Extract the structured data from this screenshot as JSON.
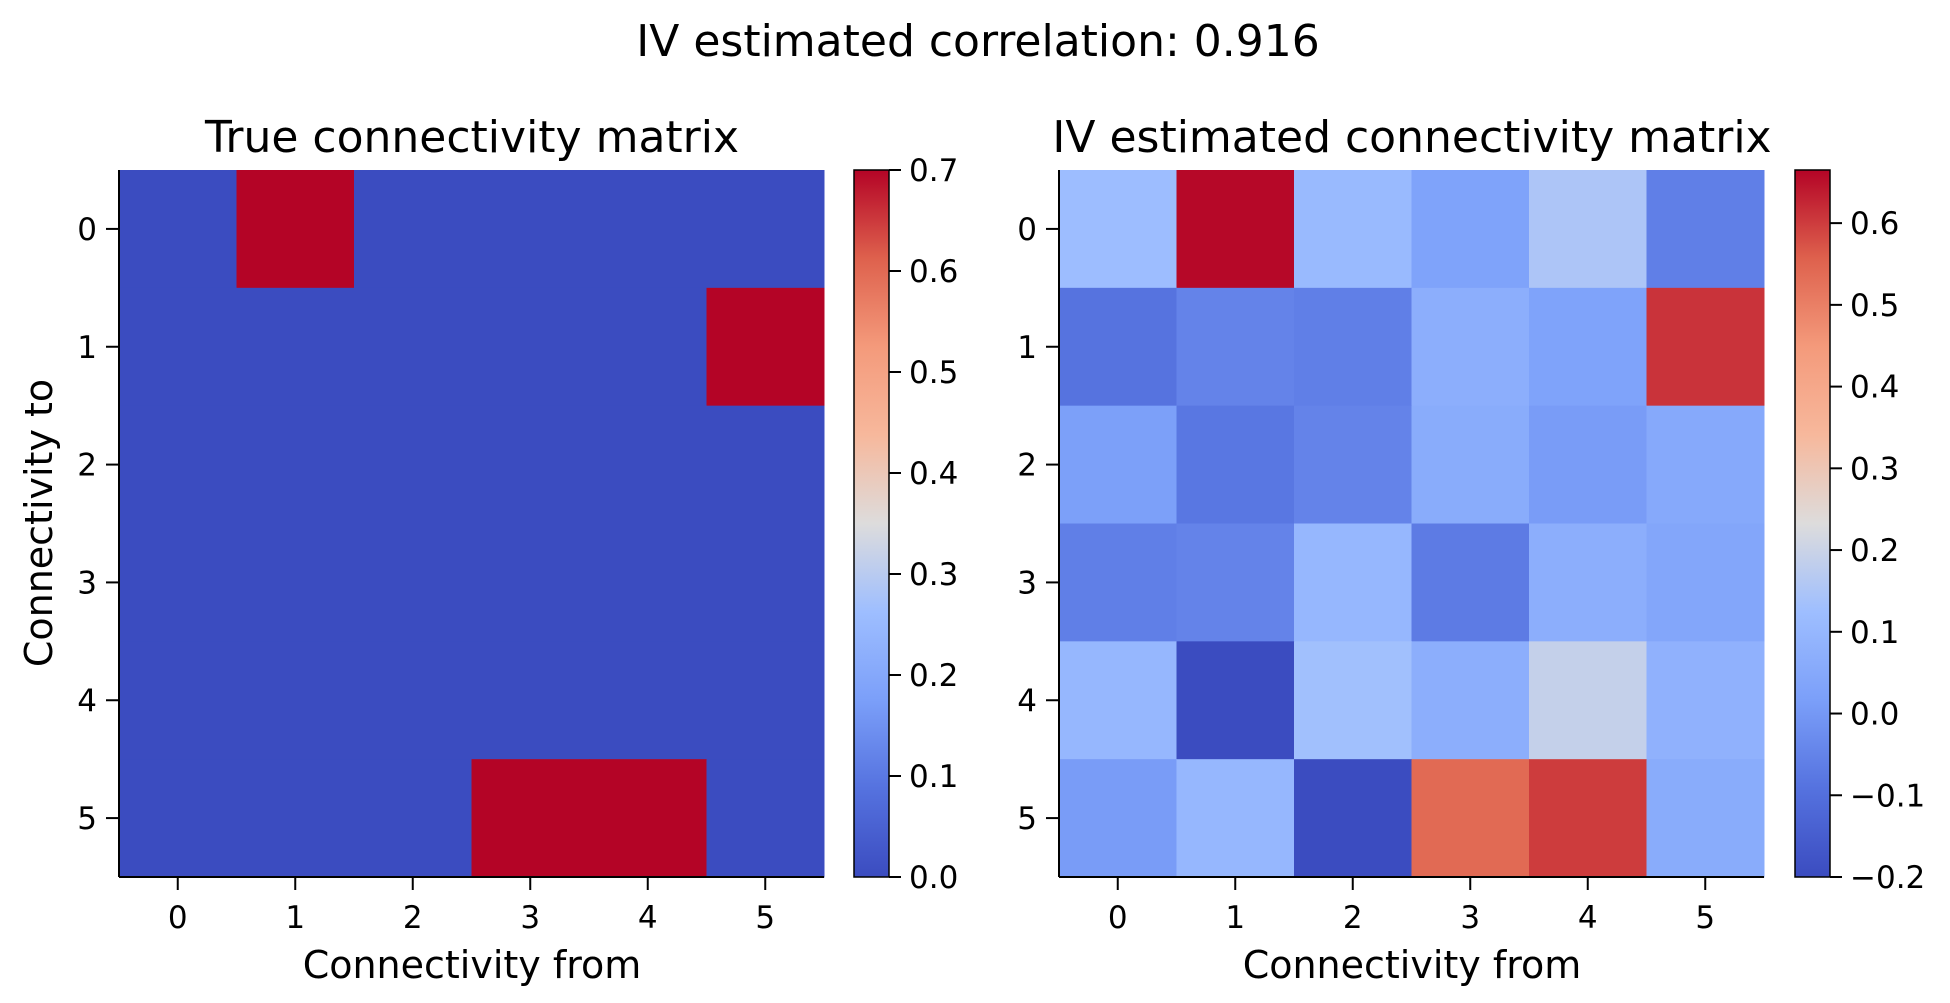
{
  "suptitle": "IV estimated correlation: 0.916",
  "chart_data": [
    {
      "type": "heatmap",
      "title": "True connectivity matrix",
      "xlabel": "Connectivity from",
      "ylabel": "Connectivity to",
      "x_ticks": [
        "0",
        "1",
        "2",
        "3",
        "4",
        "5"
      ],
      "y_ticks": [
        "0",
        "1",
        "2",
        "3",
        "4",
        "5"
      ],
      "values": [
        [
          0,
          0.7,
          0,
          0,
          0,
          0
        ],
        [
          0,
          0,
          0,
          0,
          0,
          0.7
        ],
        [
          0,
          0,
          0,
          0,
          0,
          0
        ],
        [
          0,
          0,
          0,
          0,
          0,
          0
        ],
        [
          0,
          0,
          0,
          0,
          0,
          0
        ],
        [
          0,
          0,
          0,
          0.7,
          0.7,
          0
        ]
      ],
      "colormap": "coolwarm",
      "vmin": 0.0,
      "vmax": 0.7,
      "colorbar_ticks": [
        "0.0",
        "0.1",
        "0.2",
        "0.3",
        "0.4",
        "0.5",
        "0.6",
        "0.7"
      ],
      "colorbar_tick_values": [
        0.0,
        0.1,
        0.2,
        0.3,
        0.4,
        0.5,
        0.6,
        0.7
      ]
    },
    {
      "type": "heatmap",
      "title": "IV estimated connectivity matrix",
      "xlabel": "Connectivity from",
      "ylabel": "",
      "x_ticks": [
        "0",
        "1",
        "2",
        "3",
        "4",
        "5"
      ],
      "y_ticks": [
        "0",
        "1",
        "2",
        "3",
        "4",
        "5"
      ],
      "values": [
        [
          0.12,
          0.66,
          0.11,
          0.03,
          0.15,
          -0.06
        ],
        [
          -0.09,
          -0.05,
          -0.06,
          0.07,
          0.03,
          0.61
        ],
        [
          0.02,
          -0.08,
          -0.05,
          0.06,
          0.01,
          0.05
        ],
        [
          -0.06,
          -0.05,
          0.1,
          -0.07,
          0.07,
          0.04
        ],
        [
          0.1,
          -0.2,
          0.13,
          0.07,
          0.19,
          0.08
        ],
        [
          0.01,
          0.1,
          -0.2,
          0.54,
          0.6,
          0.06
        ]
      ],
      "colormap": "coolwarm",
      "vmin": -0.2,
      "vmax": 0.665,
      "colorbar_ticks": [
        "−0.2",
        "−0.1",
        "0.0",
        "0.1",
        "0.2",
        "0.3",
        "0.4",
        "0.5",
        "0.6"
      ],
      "colorbar_tick_values": [
        -0.2,
        -0.1,
        0.0,
        0.1,
        0.2,
        0.3,
        0.4,
        0.5,
        0.6
      ]
    }
  ]
}
